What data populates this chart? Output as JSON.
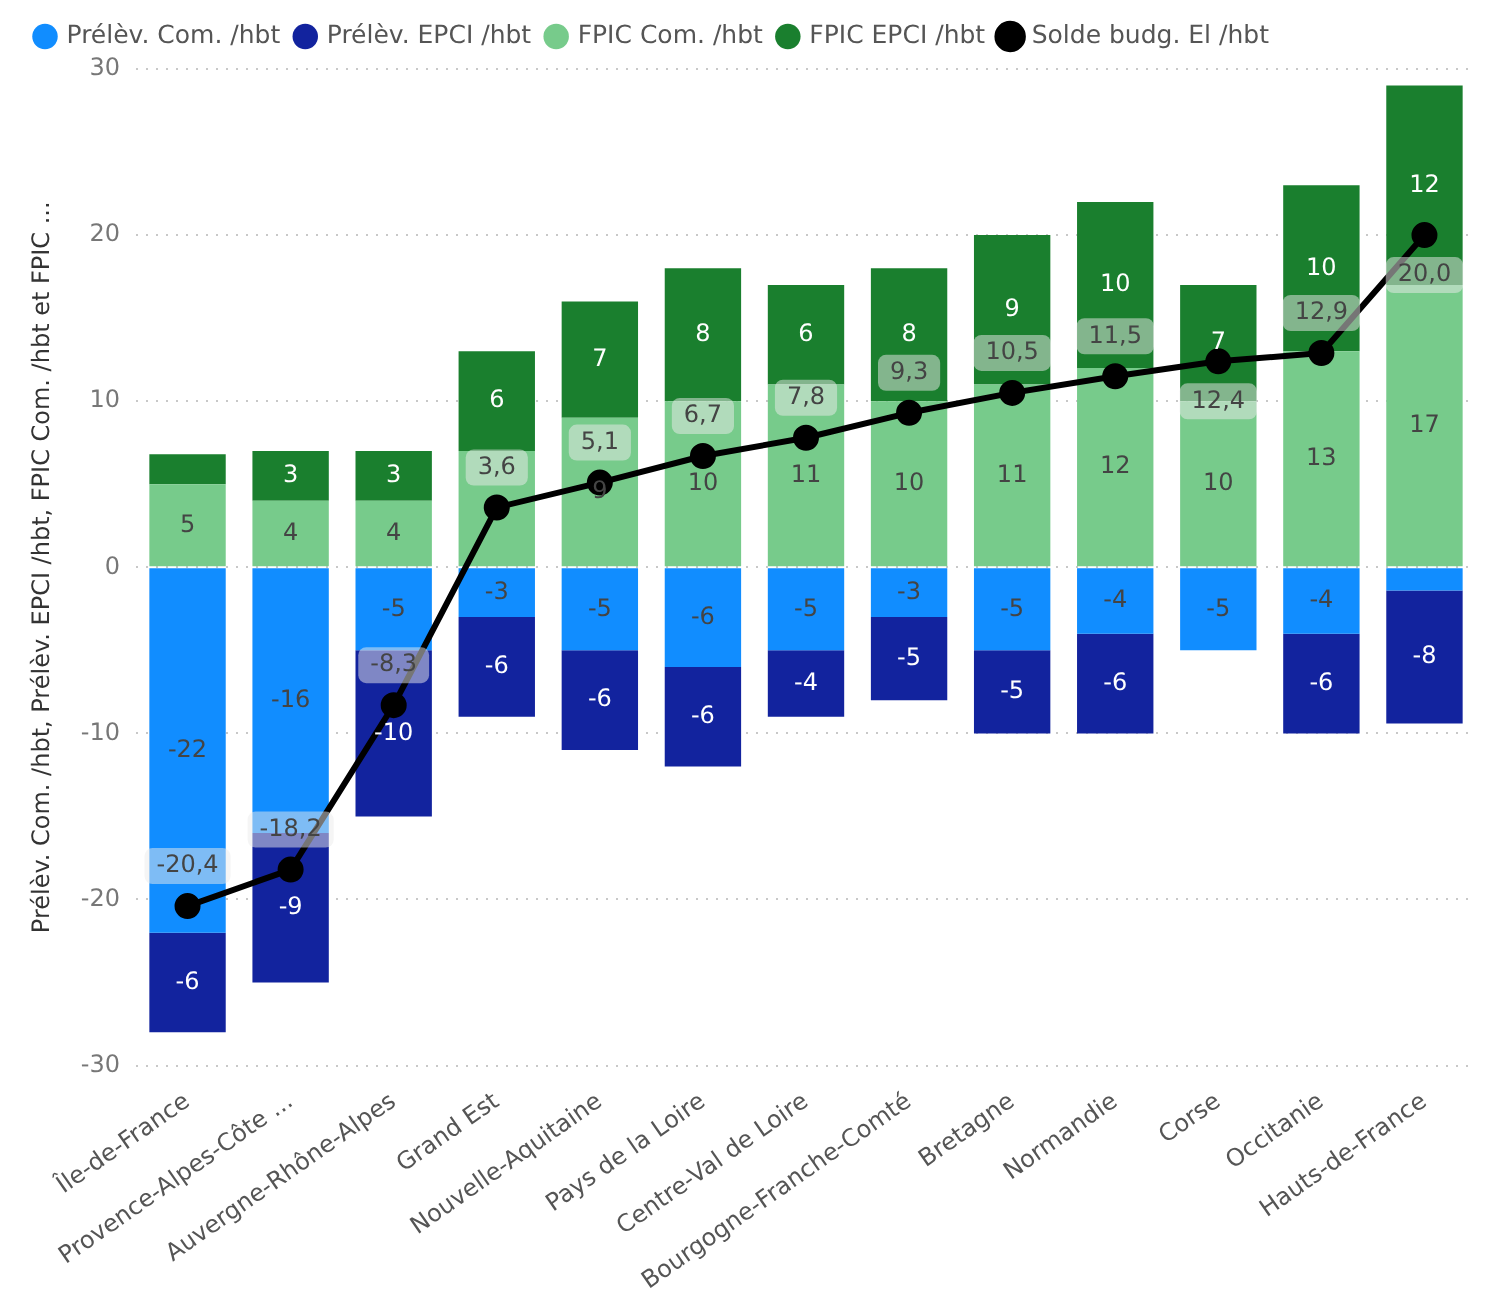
{
  "chart_data": {
    "type": "bar",
    "stacked": true,
    "ylabel": "Prélèv. Com. /hbt, Prélèv. EPCI /hbt, FPIC Com. /hbt et FPIC ...",
    "categories": [
      "Île-de-France",
      "Provence-Alpes-Côte ...",
      "Auvergne-Rhône-Alpes",
      "Grand Est",
      "Nouvelle-Aquitaine",
      "Pays de la Loire",
      "Centre-Val de Loire",
      "Bourgogne-Franche-Comté",
      "Bretagne",
      "Normandie",
      "Corse",
      "Occitanie",
      "Hauts-de-France"
    ],
    "series": [
      {
        "name": "Prélèv. Com. /hbt",
        "color": "#118dff",
        "values": [
          -22,
          -16,
          -5,
          -3,
          -5,
          -6,
          -5,
          -3,
          -5,
          -4,
          -5,
          -4,
          -1.4
        ],
        "value_labels": [
          "-22",
          "-16",
          "-5",
          "-3",
          "-5",
          "-6",
          "-5",
          "-3",
          "-5",
          "-4",
          "-5",
          "-4",
          null
        ]
      },
      {
        "name": "Prélèv. EPCI /hbt",
        "color": "#12239e",
        "values": [
          -6,
          -9,
          -10,
          -6,
          -6,
          -6,
          -4,
          -5,
          -5,
          -6,
          null,
          -6,
          -8
        ],
        "value_labels": [
          "-6",
          "-9",
          "-10",
          "-6",
          "-6",
          "-6",
          "-4",
          "-5",
          "-5",
          "-6",
          null,
          "-6",
          "-8"
        ]
      },
      {
        "name": "FPIC Com. /hbt",
        "color": "#77cb8b",
        "values": [
          5,
          4,
          4,
          7,
          9,
          10,
          11,
          10,
          11,
          12,
          10,
          13,
          17
        ],
        "value_labels": [
          "5",
          "4",
          "4",
          null,
          "9",
          "10",
          "11",
          "10",
          "11",
          "12",
          "10",
          "13",
          "17"
        ]
      },
      {
        "name": "FPIC EPCI /hbt",
        "color": "#1a7f2e",
        "values": [
          1.8,
          3,
          3,
          6,
          7,
          8,
          6,
          8,
          9,
          10,
          7,
          10,
          12
        ],
        "value_labels": [
          null,
          "3",
          "3",
          "6",
          "7",
          "8",
          "6",
          "8",
          "9",
          "10",
          "7",
          "10",
          "12"
        ]
      },
      {
        "name": "Solde budg. El /hbt",
        "type": "line",
        "color": "#000000",
        "values": [
          -20.4,
          -18.2,
          -8.3,
          3.6,
          5.1,
          6.7,
          7.8,
          9.3,
          10.5,
          11.5,
          12.4,
          12.9,
          20.0
        ],
        "value_labels": [
          "-20,4",
          "-18,2",
          "-8,3",
          "3,6",
          "5,1",
          "6,7",
          "7,8",
          "9,3",
          "10,5",
          "11,5",
          "12,4",
          "12,9",
          "20,0"
        ]
      }
    ],
    "ylim": [
      -30,
      30
    ],
    "yticks": [
      -30,
      -20,
      -10,
      0,
      10,
      20,
      30
    ],
    "grid": "y",
    "legend": "top left",
    "marker": "circle",
    "line_style": "solid"
  }
}
